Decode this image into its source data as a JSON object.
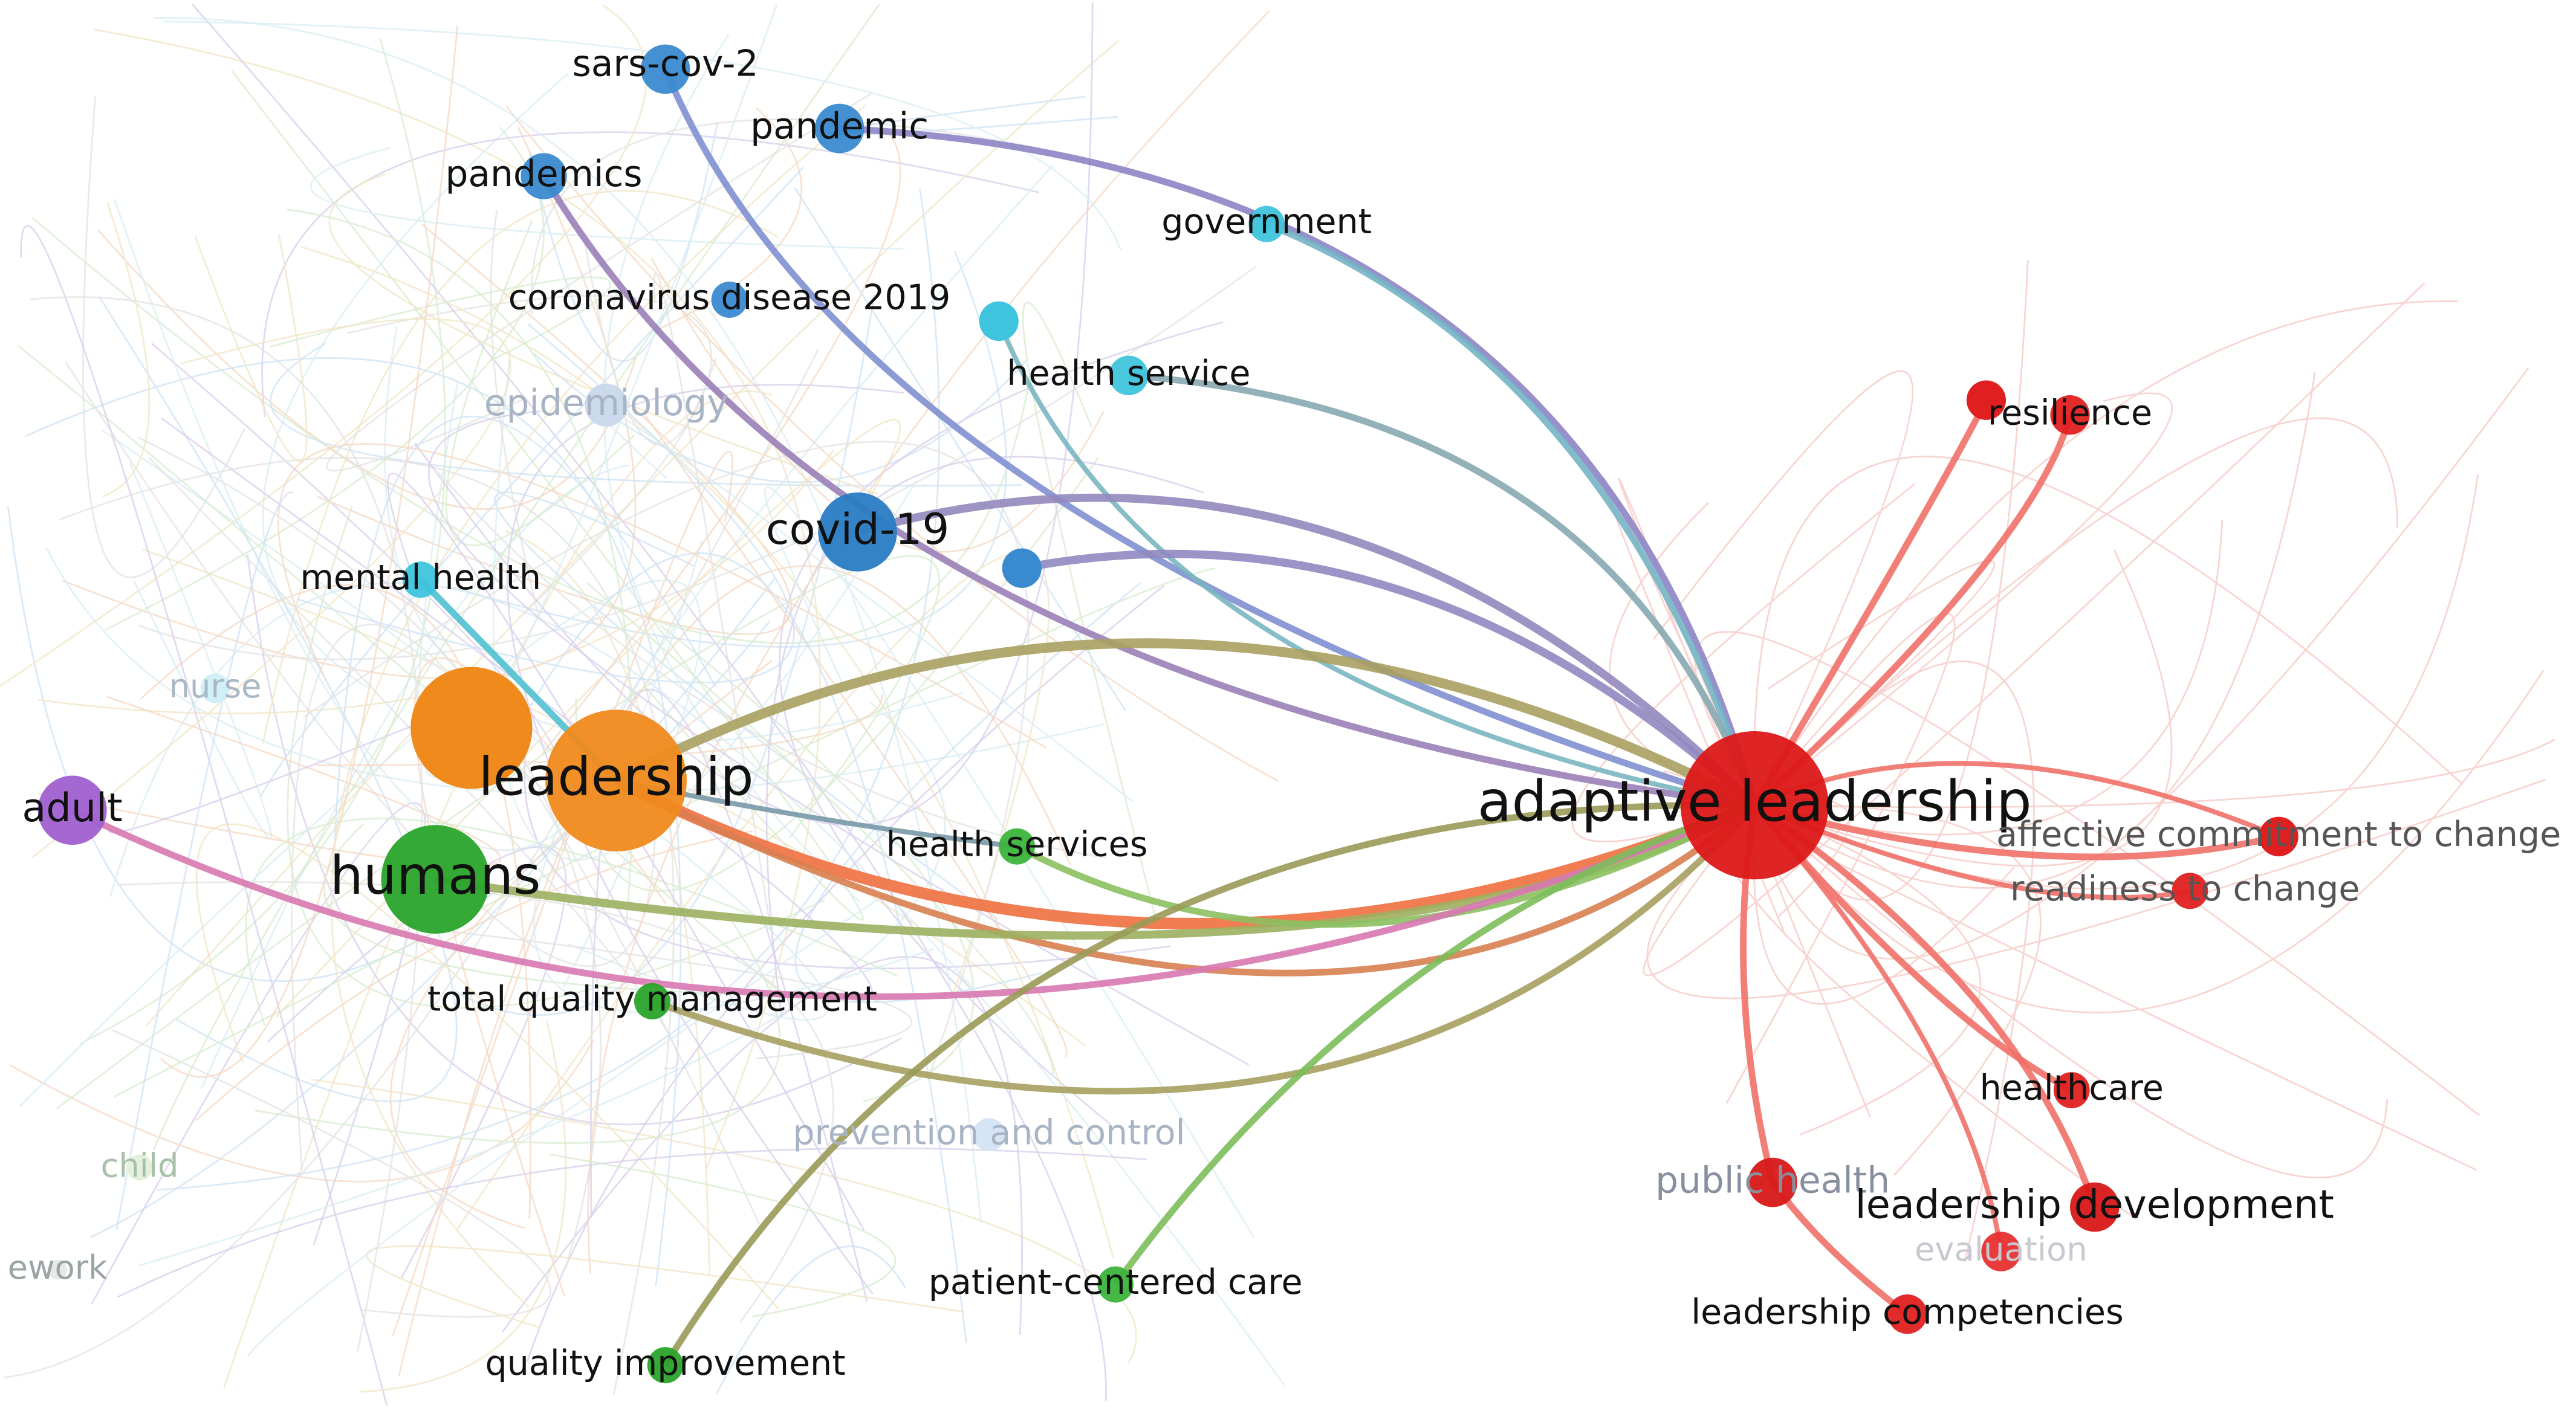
{
  "nodes": [
    {
      "label": "sars-cov-2"
    },
    {
      "label": "pandemic"
    },
    {
      "label": "pandemics"
    },
    {
      "label": "coronavirus disease 2019"
    },
    {
      "label": "government"
    },
    {
      "label": "health service"
    },
    {
      "label": "epidemiology"
    },
    {
      "label": "covid-19"
    },
    {
      "label": "mental health"
    },
    {
      "label": "nurse"
    },
    {
      "label": "leadership"
    },
    {
      "label": "adult"
    },
    {
      "label": "humans"
    },
    {
      "label": "health services"
    },
    {
      "label": "total quality management"
    },
    {
      "label": "prevention and control"
    },
    {
      "label": "child"
    },
    {
      "label": "ework"
    },
    {
      "label": "patient-centered care"
    },
    {
      "label": "quality improvement"
    },
    {
      "label": "adaptive leadership"
    },
    {
      "label": "resilience"
    },
    {
      "label": "affective commitment to change"
    },
    {
      "label": "readiness to change"
    },
    {
      "label": "healthcare"
    },
    {
      "label": "public health"
    },
    {
      "label": "leadership development"
    },
    {
      "label": "evaluation"
    },
    {
      "label": "leadership competencies"
    }
  ]
}
